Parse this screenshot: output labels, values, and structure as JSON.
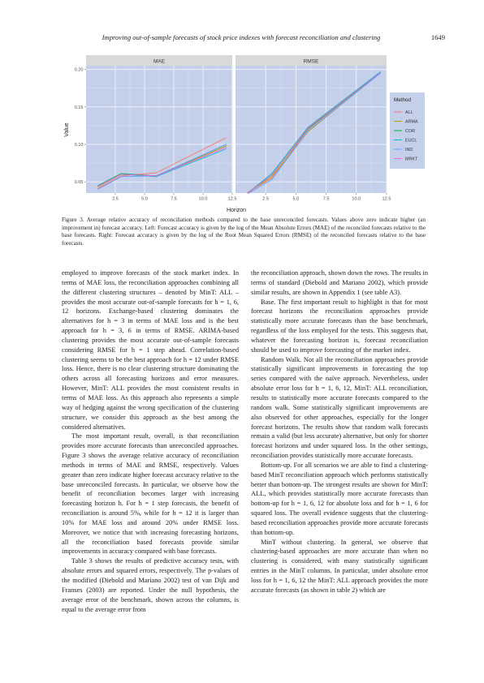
{
  "header": {
    "running_title": "Improving out-of-sample forecasts of stock price indexes with forecast reconciliation and clustering",
    "page_number": "1649"
  },
  "figure": {
    "panels": [
      "MAE",
      "RMSE"
    ],
    "x_label": "Horizon",
    "y_label": "Value",
    "legend_title": "Method",
    "caption": "Figure 3.  Average relative accuracy of reconciliation methods compared to the base unreconciled forecasts. Values above zero indicate higher (an improvement in) forecast accuracy. Left: Forecast accuracy is given by the log of the Mean Absolute Errors (MAE) of the reconciled forecasts relative to the base forecasts. Right: Forecast accuracy is given by the log of the Root Mean Squared Errors (RMSE) of the reconciled forecasts relative to the base forecasts."
  },
  "chart_data": {
    "type": "line",
    "facets": [
      "MAE",
      "RMSE"
    ],
    "x": [
      1,
      3,
      6,
      12
    ],
    "xlabel": "Horizon",
    "ylabel": "Value",
    "xlim": [
      0,
      12.5
    ],
    "ylim": [
      0.035,
      0.205
    ],
    "x_ticks": [
      "2.5",
      "5.0",
      "7.5",
      "10.0",
      "12.5"
    ],
    "y_ticks": [
      "0.05",
      "0.10",
      "0.15",
      "0.20"
    ],
    "legend_title": "Method",
    "legend_position": "right",
    "grid": true,
    "series": [
      {
        "name": "ALL",
        "color": "#f8766d",
        "MAE": [
          0.041,
          0.058,
          0.062,
          0.109
        ],
        "RMSE": [
          0.036,
          0.055,
          0.12,
          0.196
        ]
      },
      {
        "name": "ARMA",
        "color": "#b79f00",
        "MAE": [
          0.043,
          0.06,
          0.058,
          0.098
        ],
        "RMSE": [
          0.035,
          0.057,
          0.117,
          0.196
        ]
      },
      {
        "name": "COR",
        "color": "#00ba38",
        "MAE": [
          0.045,
          0.061,
          0.058,
          0.1
        ],
        "RMSE": [
          0.035,
          0.059,
          0.121,
          0.196
        ]
      },
      {
        "name": "EUCL",
        "color": "#00bfc4",
        "MAE": [
          0.045,
          0.06,
          0.057,
          0.094
        ],
        "RMSE": [
          0.035,
          0.061,
          0.123,
          0.197
        ]
      },
      {
        "name": "IND",
        "color": "#619cff",
        "MAE": [
          0.04,
          0.057,
          0.058,
          0.1
        ],
        "RMSE": [
          0.034,
          0.053,
          0.118,
          0.195
        ]
      },
      {
        "name": "MRKT",
        "color": "#f564e3",
        "MAE": [
          0.044,
          0.06,
          0.058,
          0.096
        ],
        "RMSE": [
          0.035,
          0.059,
          0.122,
          0.196
        ]
      }
    ]
  },
  "body": {
    "left": [
      "employed to improve forecasts of the stock market index. In terms of MAE loss, the reconciliation approaches combining all the different clustering structures – denoted by MinT: ALL – provides the most accurate out-of-sample forecasts for h = 1, 6, 12 horizons. Exchange-based clustering dominates the alternatives for h = 3 in terms of MAE loss and is the best approach for h = 3, 6 in terms of RMSE. ARIMA-based clustering provides the most accurate out-of-sample forecasts considering RMSE for h = 1 step ahead. Correlation-based clustering seems to be the best approach for h = 12 under RMSE loss. Hence, there is no clear clustering structure dominating the others across all forecasting horizons and error measures. However, MinT: ALL provides the most consistent results in terms of MAE loss. As this approach also represents a simple way of hedging against the wrong specification of the clustering structure, we consider this approach as the best among the considered alternatives.",
      "The most important result, overall, is that reconciliation provides more accurate forecasts than unreconciled approaches. Figure 3 shows the average relative accuracy of reconciliation methods in terms of MAE and RMSE, respectively. Values greater than zero indicate higher forecast accuracy relative to the base unreconciled forecasts. In particular, we observe how the benefit of reconciliation becomes larger with increasing forecasting horizon h. For h = 1 step forecasts, the benefit of reconciliation is around 5%, while for h = 12 it is larger than 10% for MAE loss and around 20% under RMSE loss. Moreover, we notice that with increasing forecasting horizons, all the reconciliation based forecasts provide similar improvements in accuracy compared with base forecasts.",
      "Table 3 shows the results of predictive accuracy tests, with absolute errors and squared errors, respectively. The p-values of the modified (Diebold and Mariano 2002) test of van Dijk and Franses (2003) are reported. Under the null hypothesis, the average error of the benchmark, shown across the columns, is equal to the average error from"
    ],
    "right": [
      "the reconciliation approach, shown down the rows. The results in terms of standard (Diebold and Mariano 2002), which provide similar results, are shown in Appendix 1 (see table A3).",
      "Base. The first important result to highlight is that for most forecast horizons the reconciliation approaches provide statistically more accurate forecasts than the base benchmark, regardless of the loss employed for the tests. This suggests that, whatever the forecasting horizon is, forecast reconciliation should be used to improve forecasting of the market index.",
      "Random Walk. Not all the reconciliation approaches provide statistically significant improvements in forecasting the top series compared with the naïve approach. Nevertheless, under absolute error loss for h = 1, 6, 12, MinT: ALL reconciliation, results to statistically more accurate forecasts compared to the random walk. Some statistically significant improvements are also observed for other approaches, especially for the longer forecast horizons. The results show that random walk forecasts remain a valid (but less accurate) alternative, but only for shorter forecast horizons and under squared loss. In the other settings, reconciliation provides statistically more accurate forecasts.",
      "Bottom-up. For all scenarios we are able to find a clustering-based MinT reconciliation approach which performs statistically better than bottom-up. The strongest results are shown for MinT: ALL, which provides statistically more accurate forecasts than bottom-up for h = 1, 6, 12 for absolute loss and for h = 1, 6 for squared loss. The overall evidence suggests that the clustering-based reconciliation approaches provide more accurate forecasts than bottom-up.",
      "MinT without clustering. In general, we observe that clustering-based approaches are more accurate than when no clustering is considered, with many statistically significant entries in the MinT columns. In particular, under absolute error loss for h = 1, 6, 12 the MinT: ALL approach provides the more accurate forecasts (as shown in table 2) which are"
    ]
  }
}
